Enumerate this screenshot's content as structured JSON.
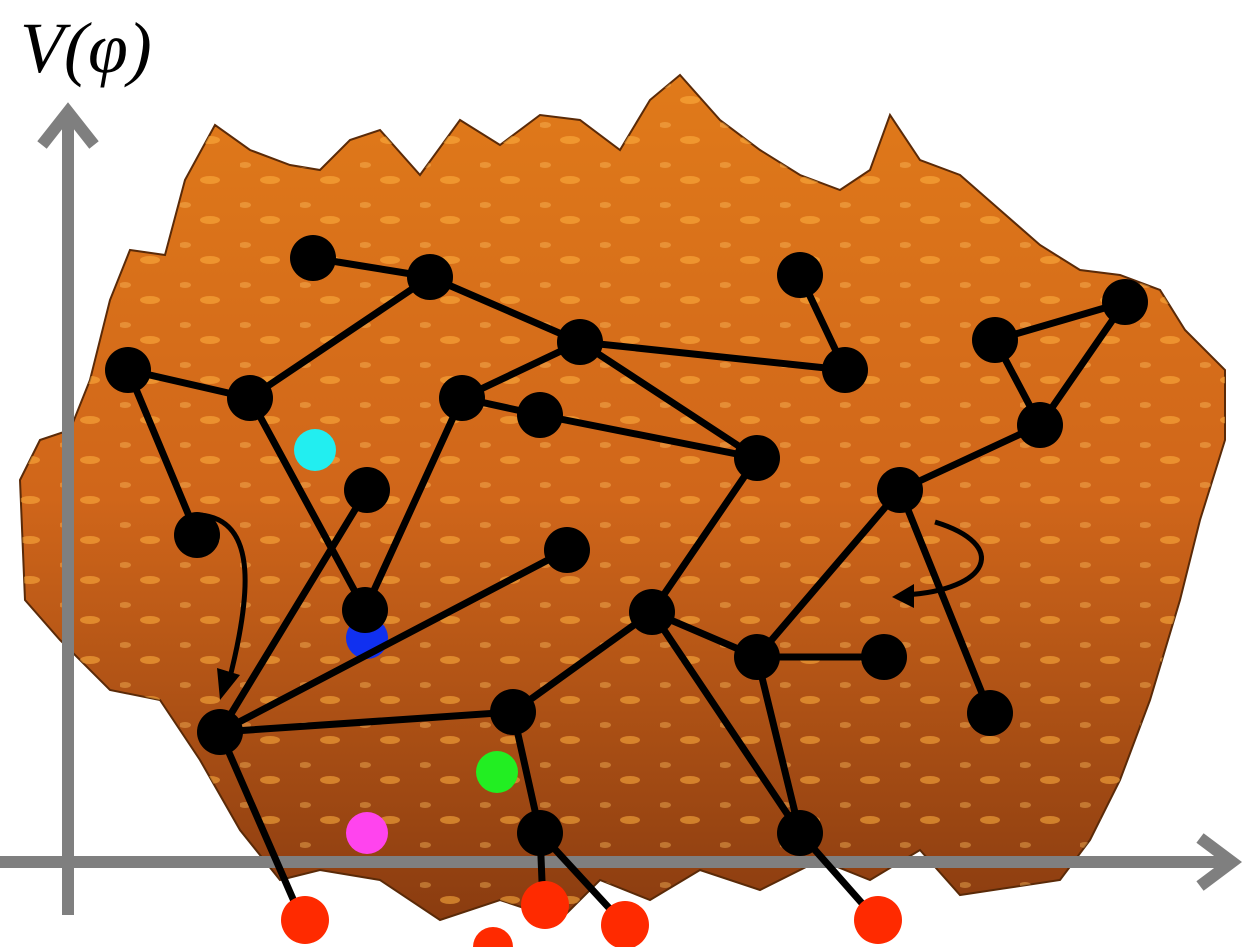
{
  "axis_label": "V(φ)"
}
